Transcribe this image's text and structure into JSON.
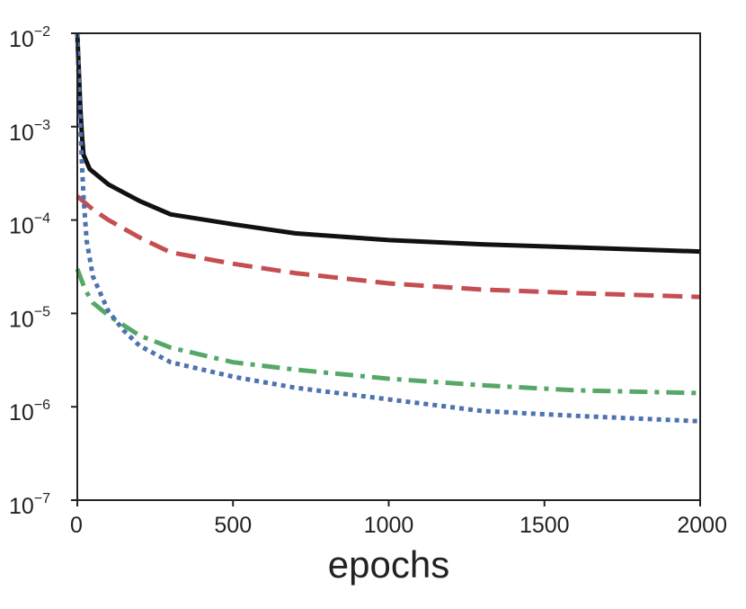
{
  "chart_data": {
    "type": "line",
    "title": "",
    "xlabel": "epochs",
    "ylabel": "",
    "xlim": [
      0,
      2000
    ],
    "ylim": [
      1e-07,
      0.01
    ],
    "y_scale": "log",
    "x_ticks": [
      {
        "value": 0,
        "label": "0"
      },
      {
        "value": 500,
        "label": "500"
      },
      {
        "value": 1000,
        "label": "1000"
      },
      {
        "value": 1500,
        "label": "1500"
      },
      {
        "value": 2000,
        "label": "2000"
      }
    ],
    "y_ticks": [
      {
        "value": 1e-07,
        "base": "10",
        "exp": "−7"
      },
      {
        "value": 1e-06,
        "base": "10",
        "exp": "−6"
      },
      {
        "value": 1e-05,
        "base": "10",
        "exp": "−5"
      },
      {
        "value": 0.0001,
        "base": "10",
        "exp": "−4"
      },
      {
        "value": 0.001,
        "base": "10",
        "exp": "−3"
      },
      {
        "value": 0.01,
        "base": "10",
        "exp": "−2"
      }
    ],
    "grid": false,
    "legend": "none",
    "series": [
      {
        "color": "#111111",
        "style": "solid",
        "points": [
          [
            0,
            0.01
          ],
          [
            5,
            0.004
          ],
          [
            10,
            0.0015
          ],
          [
            15,
            0.0008
          ],
          [
            20,
            0.0005
          ],
          [
            40,
            0.00035
          ],
          [
            100,
            0.00024
          ],
          [
            200,
            0.00016
          ],
          [
            300,
            0.000115
          ],
          [
            500,
            9e-05
          ],
          [
            700,
            7.2e-05
          ],
          [
            1000,
            6.1e-05
          ],
          [
            1300,
            5.5e-05
          ],
          [
            1600,
            5.1e-05
          ],
          [
            2000,
            4.6e-05
          ]
        ]
      },
      {
        "color": "#c44e52",
        "style": "dashed",
        "points": [
          [
            0,
            0.00018
          ],
          [
            50,
            0.00013
          ],
          [
            100,
            0.0001
          ],
          [
            200,
            6.5e-05
          ],
          [
            300,
            4.5e-05
          ],
          [
            500,
            3.4e-05
          ],
          [
            700,
            2.7e-05
          ],
          [
            1000,
            2.1e-05
          ],
          [
            1300,
            1.8e-05
          ],
          [
            1600,
            1.65e-05
          ],
          [
            2000,
            1.5e-05
          ]
        ]
      },
      {
        "color": "#55a868",
        "style": "dashdot",
        "points": [
          [
            0,
            3e-05
          ],
          [
            25,
            1.8e-05
          ],
          [
            50,
            1.3e-05
          ],
          [
            100,
            9.5e-06
          ],
          [
            200,
            5.8e-06
          ],
          [
            300,
            4.3e-06
          ],
          [
            500,
            3e-06
          ],
          [
            700,
            2.5e-06
          ],
          [
            1000,
            2e-06
          ],
          [
            1300,
            1.7e-06
          ],
          [
            1600,
            1.5e-06
          ],
          [
            2000,
            1.4e-06
          ]
        ]
      },
      {
        "color": "#4c72b0",
        "style": "dotted",
        "points": [
          [
            0,
            0.01
          ],
          [
            5,
            0.003
          ],
          [
            10,
            0.0009
          ],
          [
            15,
            0.0004
          ],
          [
            20,
            0.00018
          ],
          [
            30,
            6e-05
          ],
          [
            50,
            2.5e-05
          ],
          [
            100,
            1.05e-05
          ],
          [
            150,
            6.5e-06
          ],
          [
            200,
            4.5e-06
          ],
          [
            300,
            3e-06
          ],
          [
            500,
            2.1e-06
          ],
          [
            700,
            1.6e-06
          ],
          [
            1000,
            1.2e-06
          ],
          [
            1300,
            9e-07
          ],
          [
            1600,
            8e-07
          ],
          [
            2000,
            7e-07
          ]
        ]
      }
    ]
  }
}
